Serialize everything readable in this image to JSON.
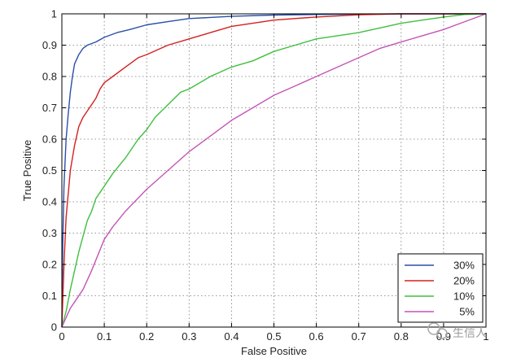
{
  "chart_data": {
    "type": "line",
    "title": "",
    "xlabel": "False Positive",
    "ylabel": "True Positive",
    "xlim": [
      0,
      1
    ],
    "ylim": [
      0,
      1
    ],
    "grid": true,
    "legend_position": "bottom-right",
    "x_ticks": [
      "0",
      "0.1",
      "0.2",
      "0.3",
      "0.4",
      "0.5",
      "0.6",
      "0.7",
      "0.8",
      "0.9",
      "1"
    ],
    "y_ticks": [
      "0",
      "0.1",
      "0.2",
      "0.3",
      "0.4",
      "0.5",
      "0.6",
      "0.7",
      "0.8",
      "0.9",
      "1"
    ],
    "series": [
      {
        "name": "30%",
        "color": "#2a4fa8",
        "points": [
          [
            0,
            0
          ],
          [
            0.002,
            0.25
          ],
          [
            0.005,
            0.45
          ],
          [
            0.01,
            0.6
          ],
          [
            0.015,
            0.68
          ],
          [
            0.02,
            0.75
          ],
          [
            0.025,
            0.8
          ],
          [
            0.03,
            0.84
          ],
          [
            0.04,
            0.87
          ],
          [
            0.05,
            0.89
          ],
          [
            0.06,
            0.9
          ],
          [
            0.08,
            0.91
          ],
          [
            0.1,
            0.925
          ],
          [
            0.13,
            0.94
          ],
          [
            0.16,
            0.95
          ],
          [
            0.2,
            0.965
          ],
          [
            0.25,
            0.975
          ],
          [
            0.3,
            0.985
          ],
          [
            0.4,
            0.992
          ],
          [
            0.5,
            0.996
          ],
          [
            0.6,
            0.998
          ],
          [
            0.8,
            1
          ],
          [
            1,
            1
          ]
        ]
      },
      {
        "name": "20%",
        "color": "#d42020",
        "points": [
          [
            0,
            0
          ],
          [
            0.005,
            0.2
          ],
          [
            0.01,
            0.35
          ],
          [
            0.02,
            0.5
          ],
          [
            0.03,
            0.58
          ],
          [
            0.04,
            0.64
          ],
          [
            0.05,
            0.67
          ],
          [
            0.06,
            0.69
          ],
          [
            0.07,
            0.71
          ],
          [
            0.08,
            0.73
          ],
          [
            0.09,
            0.76
          ],
          [
            0.1,
            0.78
          ],
          [
            0.12,
            0.8
          ],
          [
            0.15,
            0.83
          ],
          [
            0.18,
            0.86
          ],
          [
            0.2,
            0.87
          ],
          [
            0.25,
            0.9
          ],
          [
            0.3,
            0.92
          ],
          [
            0.35,
            0.94
          ],
          [
            0.4,
            0.96
          ],
          [
            0.45,
            0.97
          ],
          [
            0.5,
            0.98
          ],
          [
            0.6,
            0.99
          ],
          [
            0.7,
            0.997
          ],
          [
            0.8,
            1
          ],
          [
            1,
            1
          ]
        ]
      },
      {
        "name": "10%",
        "color": "#3fbf3f",
        "points": [
          [
            0,
            0
          ],
          [
            0.01,
            0.05
          ],
          [
            0.02,
            0.12
          ],
          [
            0.03,
            0.18
          ],
          [
            0.04,
            0.24
          ],
          [
            0.05,
            0.29
          ],
          [
            0.06,
            0.34
          ],
          [
            0.07,
            0.37
          ],
          [
            0.08,
            0.41
          ],
          [
            0.1,
            0.45
          ],
          [
            0.12,
            0.49
          ],
          [
            0.15,
            0.54
          ],
          [
            0.18,
            0.6
          ],
          [
            0.2,
            0.63
          ],
          [
            0.22,
            0.67
          ],
          [
            0.25,
            0.71
          ],
          [
            0.28,
            0.75
          ],
          [
            0.3,
            0.76
          ],
          [
            0.35,
            0.8
          ],
          [
            0.4,
            0.83
          ],
          [
            0.45,
            0.85
          ],
          [
            0.5,
            0.88
          ],
          [
            0.55,
            0.9
          ],
          [
            0.6,
            0.92
          ],
          [
            0.65,
            0.93
          ],
          [
            0.7,
            0.94
          ],
          [
            0.75,
            0.955
          ],
          [
            0.8,
            0.97
          ],
          [
            0.85,
            0.98
          ],
          [
            0.9,
            0.99
          ],
          [
            0.95,
            0.998
          ],
          [
            1,
            1
          ]
        ]
      },
      {
        "name": "5%",
        "color": "#c455b5",
        "points": [
          [
            0,
            0
          ],
          [
            0.01,
            0.03
          ],
          [
            0.02,
            0.06
          ],
          [
            0.03,
            0.08
          ],
          [
            0.05,
            0.12
          ],
          [
            0.07,
            0.18
          ],
          [
            0.1,
            0.28
          ],
          [
            0.12,
            0.32
          ],
          [
            0.15,
            0.37
          ],
          [
            0.2,
            0.44
          ],
          [
            0.25,
            0.5
          ],
          [
            0.3,
            0.56
          ],
          [
            0.35,
            0.61
          ],
          [
            0.4,
            0.66
          ],
          [
            0.45,
            0.7
          ],
          [
            0.5,
            0.74
          ],
          [
            0.55,
            0.77
          ],
          [
            0.6,
            0.8
          ],
          [
            0.65,
            0.83
          ],
          [
            0.7,
            0.86
          ],
          [
            0.75,
            0.89
          ],
          [
            0.8,
            0.91
          ],
          [
            0.85,
            0.93
          ],
          [
            0.9,
            0.95
          ],
          [
            0.95,
            0.975
          ],
          [
            1,
            1
          ]
        ]
      }
    ]
  },
  "watermark": {
    "text": "生信人",
    "icon": "wechat-icon"
  }
}
